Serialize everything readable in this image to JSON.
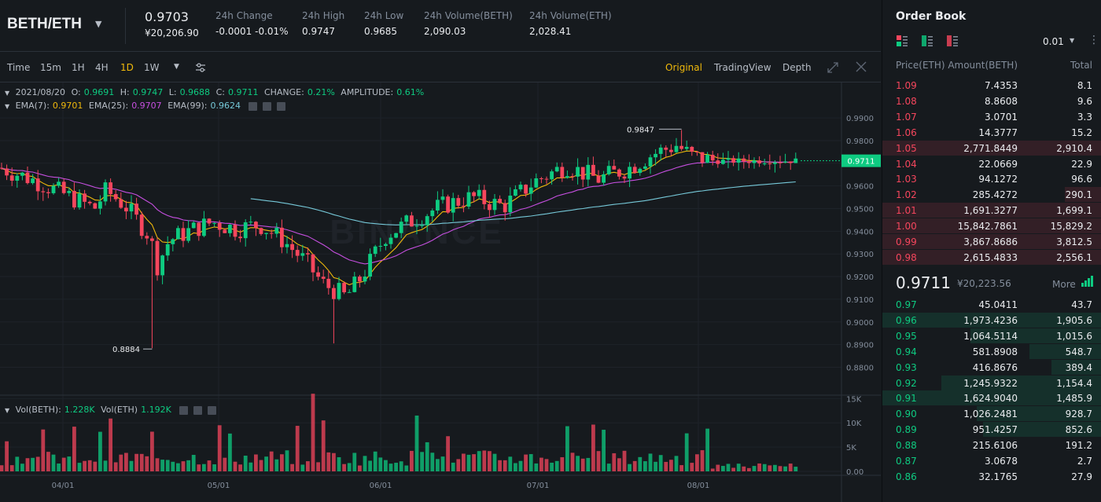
{
  "header": {
    "pair": "BETH/ETH",
    "last_price": "0.9703",
    "last_price_cny": "¥20,206.90",
    "stats": [
      {
        "label": "24h Change",
        "value": "-0.0001 -0.01%",
        "color": "#f6465d"
      },
      {
        "label": "24h High",
        "value": "0.9747",
        "color": "#eaecef"
      },
      {
        "label": "24h Low",
        "value": "0.9685",
        "color": "#eaecef"
      },
      {
        "label": "24h Volume(BETH)",
        "value": "2,090.03",
        "color": "#eaecef"
      },
      {
        "label": "24h Volume(ETH)",
        "value": "2,028.41",
        "color": "#eaecef"
      }
    ]
  },
  "toolbar": {
    "intervals": [
      "Time",
      "15m",
      "1H",
      "4H",
      "1D",
      "1W"
    ],
    "active_interval": "1D",
    "views": [
      "Original",
      "TradingView",
      "Depth"
    ],
    "active_view": "Original"
  },
  "legend": {
    "date": "2021/08/20",
    "o_label": "O:",
    "o": "0.9691",
    "h_label": "H:",
    "h": "0.9747",
    "l_label": "L:",
    "l": "0.9688",
    "c_label": "C:",
    "c": "0.9711",
    "change_label": "CHANGE:",
    "change": "0.21%",
    "amplitude_label": "AMPLITUDE:",
    "amplitude": "0.61%",
    "ema7_label": "EMA(7):",
    "ema7": "0.9701",
    "ema25_label": "EMA(25):",
    "ema25": "0.9707",
    "ema99_label": "EMA(99):",
    "ema99": "0.9624",
    "vol_beth_label": "Vol(BETH):",
    "vol_beth": "1.228K",
    "vol_eth_label": "Vol(ETH)",
    "vol_eth": "1.192K"
  },
  "watermark": "BINANCE",
  "chart_data": {
    "type": "candlestick",
    "price_axis": [
      "0.9900",
      "0.9800",
      "0.9700",
      "0.9600",
      "0.9500",
      "0.9400",
      "0.9300",
      "0.9200",
      "0.9100",
      "0.9000",
      "0.8900",
      "0.8800"
    ],
    "price_range": [
      0.876,
      0.9935
    ],
    "volume_axis": [
      "15K",
      "10K",
      "5K",
      "0.00"
    ],
    "volume_range": [
      0,
      17000
    ],
    "x_labels": [
      "04/01",
      "05/01",
      "06/01",
      "07/01",
      "08/01"
    ],
    "current_price_tag": "0.9711",
    "high_marker": "0.9847",
    "low_marker": "0.8884",
    "colors": {
      "up": "#0ecb81",
      "down": "#f6465d",
      "ema7": "#f0b90b",
      "ema25": "#c64fe0",
      "ema99": "#76c9d9"
    }
  },
  "order_book": {
    "title": "Order Book",
    "step": "0.01",
    "headers": [
      "Price(ETH)",
      "Amount(BETH)",
      "Total"
    ],
    "asks": [
      {
        "price": "1.09",
        "amount": "7.4353",
        "total": "8.1",
        "depth": 0.0
      },
      {
        "price": "1.08",
        "amount": "8.8608",
        "total": "9.6",
        "depth": 0.0
      },
      {
        "price": "1.07",
        "amount": "3.0701",
        "total": "3.3",
        "depth": 0.0
      },
      {
        "price": "1.06",
        "amount": "14.3777",
        "total": "15.2",
        "depth": 0.0
      },
      {
        "price": "1.05",
        "amount": "2,771.8449",
        "total": "2,910.4",
        "depth": 1.0
      },
      {
        "price": "1.04",
        "amount": "22.0669",
        "total": "22.9",
        "depth": 0.0
      },
      {
        "price": "1.03",
        "amount": "94.1272",
        "total": "96.6",
        "depth": 0.0
      },
      {
        "price": "1.02",
        "amount": "285.4272",
        "total": "290.1",
        "depth": 0.17
      },
      {
        "price": "1.01",
        "amount": "1,691.3277",
        "total": "1,699.1",
        "depth": 1.0
      },
      {
        "price": "1.00",
        "amount": "15,842.7861",
        "total": "15,829.2",
        "depth": 1.0
      },
      {
        "price": "0.99",
        "amount": "3,867.8686",
        "total": "3,812.5",
        "depth": 1.0
      },
      {
        "price": "0.98",
        "amount": "2,615.4833",
        "total": "2,556.1",
        "depth": 1.0
      }
    ],
    "mid_price": "0.9711",
    "mid_price_cny": "¥20,223.56",
    "more_label": "More",
    "bids": [
      {
        "price": "0.97",
        "amount": "45.0411",
        "total": "43.7",
        "depth": 0.0
      },
      {
        "price": "0.96",
        "amount": "1,973.4236",
        "total": "1,905.6",
        "depth": 1.0
      },
      {
        "price": "0.95",
        "amount": "1,064.5114",
        "total": "1,015.6",
        "depth": 0.6
      },
      {
        "price": "0.94",
        "amount": "581.8908",
        "total": "548.7",
        "depth": 0.33
      },
      {
        "price": "0.93",
        "amount": "416.8676",
        "total": "389.4",
        "depth": 0.23
      },
      {
        "price": "0.92",
        "amount": "1,245.9322",
        "total": "1,154.4",
        "depth": 0.73
      },
      {
        "price": "0.91",
        "amount": "1,624.9040",
        "total": "1,485.9",
        "depth": 1.0
      },
      {
        "price": "0.90",
        "amount": "1,026.2481",
        "total": "928.7",
        "depth": 0.57
      },
      {
        "price": "0.89",
        "amount": "951.4257",
        "total": "852.6",
        "depth": 0.54
      },
      {
        "price": "0.88",
        "amount": "215.6106",
        "total": "191.2",
        "depth": 0.0
      },
      {
        "price": "0.87",
        "amount": "3.0678",
        "total": "2.7",
        "depth": 0.0
      },
      {
        "price": "0.86",
        "amount": "32.1765",
        "total": "27.9",
        "depth": 0.0
      }
    ]
  }
}
